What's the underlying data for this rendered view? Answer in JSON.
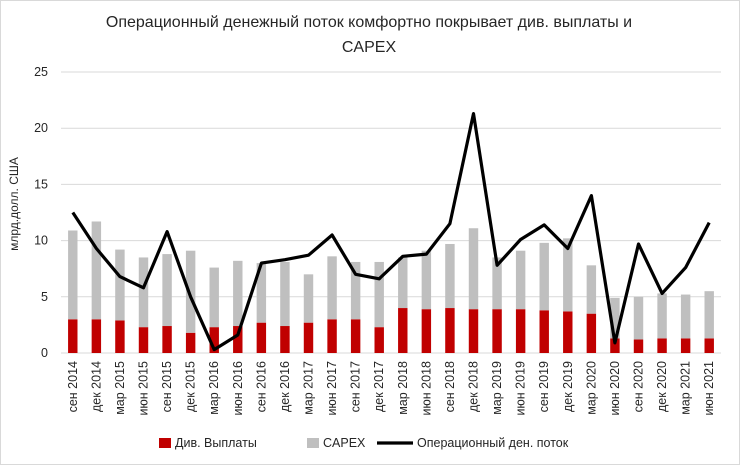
{
  "chart_data": {
    "type": "bar",
    "title_line1": "Операционный денежный поток комфортно покрывает див. выплаты и",
    "title_line2": "CAPEX",
    "ylabel": "млрд.долл. США",
    "xlabel": "",
    "ylim": [
      0,
      25
    ],
    "yticks": [
      "0",
      "5",
      "10",
      "15",
      "20",
      "25"
    ],
    "grid": true,
    "legend_position": "bottom",
    "stacked": true,
    "categories": [
      "сен 2014",
      "дек 2014",
      "мар 2015",
      "июн 2015",
      "сен 2015",
      "дек 2015",
      "мар 2016",
      "июн 2016",
      "сен 2016",
      "дек 2016",
      "мар 2017",
      "июн 2017",
      "сен 2017",
      "дек 2017",
      "мар 2018",
      "июн 2018",
      "сен 2018",
      "дек 2018",
      "мар 2019",
      "июн 2019",
      "сен 2019",
      "дек 2019",
      "мар 2020",
      "июн 2020",
      "сен 2020",
      "дек 2020",
      "мар 2021",
      "июн 2021"
    ],
    "series": [
      {
        "name": "Див. Выплаты",
        "kind": "bar",
        "color": "#c00000",
        "values": [
          3.0,
          3.0,
          2.9,
          2.3,
          2.4,
          1.8,
          2.3,
          2.4,
          2.7,
          2.4,
          2.7,
          3.0,
          3.0,
          2.3,
          4.0,
          3.9,
          4.0,
          3.9,
          3.9,
          3.9,
          3.8,
          3.7,
          3.5,
          1.3,
          1.2,
          1.3,
          1.3,
          1.3
        ]
      },
      {
        "name": "CAPEX",
        "kind": "bar",
        "color": "#bfbfbf",
        "values": [
          7.9,
          8.7,
          6.3,
          6.2,
          6.4,
          7.3,
          5.3,
          5.8,
          5.3,
          5.7,
          4.3,
          5.6,
          5.1,
          5.8,
          4.5,
          5.2,
          5.7,
          7.2,
          4.6,
          5.2,
          6.0,
          6.5,
          4.3,
          3.6,
          3.8,
          4.0,
          3.9,
          4.2
        ]
      },
      {
        "name": "Операционный ден. поток",
        "kind": "line",
        "color": "#000000",
        "values": [
          12.5,
          9.3,
          6.8,
          5.8,
          10.8,
          5.0,
          0.3,
          1.6,
          8.0,
          8.3,
          8.7,
          10.5,
          7.0,
          6.6,
          8.6,
          8.8,
          11.5,
          21.3,
          7.8,
          10.1,
          11.4,
          9.3,
          14.0,
          0.9,
          9.7,
          5.3,
          7.6,
          11.6
        ]
      }
    ]
  }
}
